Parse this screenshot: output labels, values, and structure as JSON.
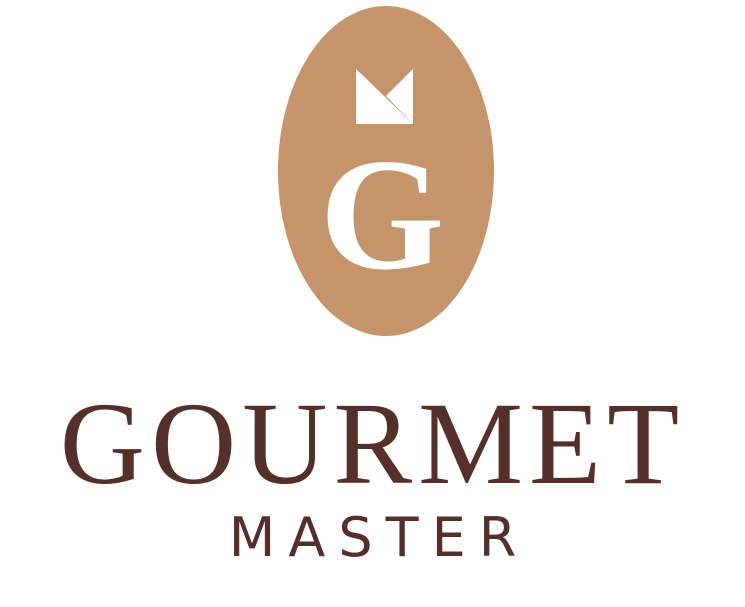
{
  "logo": {
    "monogram_letter": "G",
    "wordmark": "GOURMET",
    "tagline": "MASTER"
  },
  "colors": {
    "emblem": "#C6946A",
    "emblem_mark": "#FFFFFF",
    "text": "#55302B",
    "background": "#FFFFFF"
  },
  "icons": {
    "crown": "geometric-crown-icon"
  }
}
